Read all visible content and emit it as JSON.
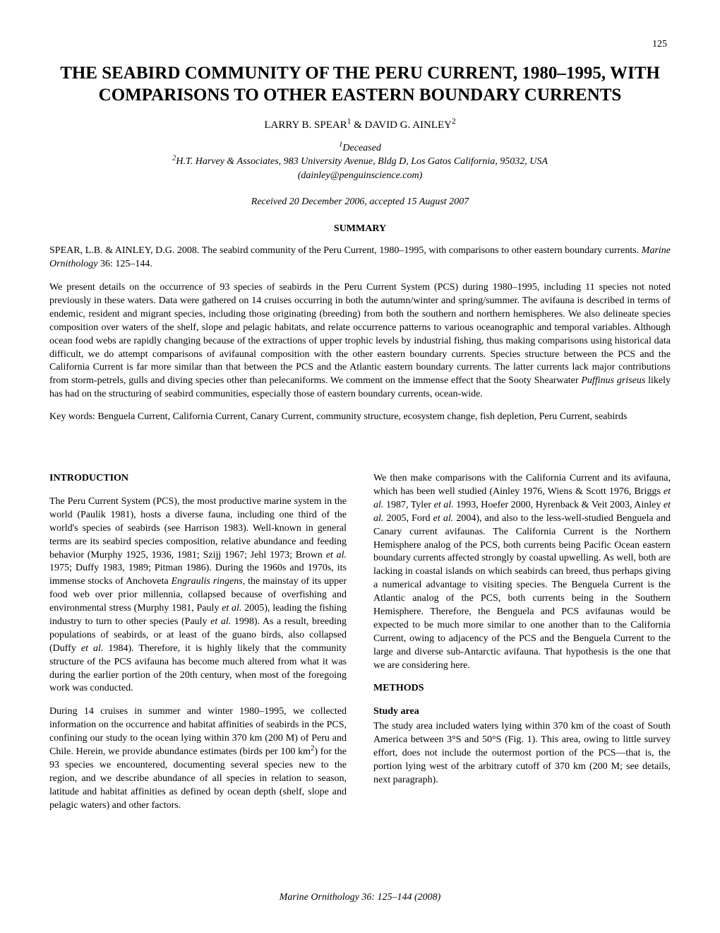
{
  "page_number": "125",
  "title_line1": "THE SEABIRD COMMUNITY OF THE PERU CURRENT, 1980–1995, WITH",
  "title_line2": "COMPARISONS TO OTHER EASTERN BOUNDARY CURRENTS",
  "authors_prefix": "LARRY B. SPEAR",
  "authors_sup1": "1",
  "authors_mid": " & DAVID G. AINLEY",
  "authors_sup2": "2",
  "affil_sup1": "1",
  "affil_line1": "Deceased",
  "affil_sup2": "2",
  "affil_line2": "H.T. Harvey & Associates, 983 University Avenue, Bldg D, Los Gatos California, 95032, USA",
  "affil_line3": "(dainley@penguinscience.com)",
  "received": "Received 20 December 2006, accepted 15 August 2007",
  "summary_heading": "SUMMARY",
  "summary_cite_a": "SPEAR, L.B. & AINLEY, D.G. 2008. The seabird community of the Peru Current, 1980–1995, with comparisons to other eastern boundary currents. ",
  "summary_cite_b": "Marine Ornithology",
  "summary_cite_c": " 36: 125–144.",
  "summary_body_a": "We present details on the occurrence of 93 species of seabirds in the Peru Current System (PCS) during 1980–1995, including 11 species not noted previously in these waters. Data were gathered on 14 cruises occurring in both the autumn/winter and spring/summer. The avifauna is described in terms of endemic, resident and migrant species, including those originating (breeding) from both the southern and northern hemispheres. We also delineate species composition over waters of the shelf, slope and pelagic habitats, and relate occurrence patterns to various oceanographic and temporal variables. Although ocean food webs are rapidly changing because of the extractions of upper trophic levels by industrial fishing, thus making comparisons using historical data difficult, we do attempt comparisons of avifaunal composition with the other eastern boundary currents. Species structure between the PCS and the California Current is far more similar than that between the PCS and the Atlantic eastern boundary currents. The latter currents lack major contributions from storm-petrels, gulls and diving species other than pelecaniforms. We comment on the immense effect that the Sooty Shearwater ",
  "summary_body_b": "Puffinus griseus",
  "summary_body_c": " likely has had on the structuring of seabird communities, especially those of eastern boundary currents, ocean-wide.",
  "keywords": "Key words: Benguela Current, California Current, Canary Current, community structure, ecosystem change, fish depletion, Peru Current, seabirds",
  "intro_heading": "INTRODUCTION",
  "intro_p1_a": "The Peru Current System (PCS), the most productive marine system in the world (Paulik 1981), hosts a diverse fauna, including one third of the world's species of seabirds (see Harrison 1983). Well-known in general terms are its seabird species composition, relative abundance and feeding behavior (Murphy 1925, 1936, 1981; Szijj 1967; Jehl 1973; Brown ",
  "intro_p1_b": "et al.",
  "intro_p1_c": " 1975; Duffy 1983, 1989; Pitman 1986). During the 1960s and 1970s, its immense stocks of Anchoveta ",
  "intro_p1_d": "Engraulis ringens,",
  "intro_p1_e": " the mainstay of its upper food web over prior millennia, collapsed because of overfishing and environmental stress (Murphy 1981, Pauly ",
  "intro_p1_f": "et al.",
  "intro_p1_g": " 2005), leading the fishing industry to turn to other species (Pauly ",
  "intro_p1_h": "et al.",
  "intro_p1_i": " 1998). As a result, breeding populations of seabirds, or at least of the guano birds, also collapsed (Duffy ",
  "intro_p1_j": "et al.",
  "intro_p1_k": " 1984). Therefore, it is highly likely that the community structure of the PCS avifauna has become much altered from what it was during the earlier portion of the 20th century, when most of the foregoing work was conducted.",
  "intro_p2_a": "During 14 cruises in summer and winter 1980–1995, we collected information on the occurrence and habitat affinities of seabirds in the PCS, confining our study to the ocean lying within 370 km (200 M) of Peru and Chile. Herein, we provide abundance estimates (birds per 100 km",
  "intro_p2_sup": "2",
  "intro_p2_b": ") for the 93 species we encountered, documenting several species new to the region, and we describe abundance of all species in relation to season, latitude and habitat affinities as defined by ocean depth (shelf, slope and pelagic waters) and other factors.",
  "col2_p1_a": "We then make comparisons with the California Current and its avifauna, which has been well studied (Ainley 1976, Wiens & Scott 1976, Briggs ",
  "col2_p1_b": "et al.",
  "col2_p1_c": " 1987, Tyler ",
  "col2_p1_d": "et al.",
  "col2_p1_e": " 1993, Hoefer 2000, Hyrenback & Veit 2003, Ainley ",
  "col2_p1_f": "et al.",
  "col2_p1_g": " 2005, Ford ",
  "col2_p1_h": "et al.",
  "col2_p1_i": " 2004), and also to the less-well-studied Benguela and Canary current avifaunas. The California Current is the Northern Hemisphere analog of the PCS, both currents being Pacific Ocean eastern boundary currents affected strongly by coastal upwelling. As well, both are lacking in coastal islands on which seabirds can breed, thus perhaps giving a numerical advantage to visiting species. The Benguela Current is the Atlantic analog of the PCS, both currents being in the Southern Hemisphere. Therefore, the Benguela and PCS avifaunas would be expected to be much more similar to one another than to the California Current, owing to adjacency of the PCS and the Benguela Current to the large and diverse sub-Antarctic avifauna. That hypothesis is the one that we are considering here.",
  "methods_heading": "METHODS",
  "study_heading": "Study area",
  "study_body": "The study area included waters lying within 370 km of the coast of South America between 3°S and 50°S (Fig. 1). This area, owing to little survey effort, does not include the outermost portion of the PCS—that is, the portion lying west of the arbitrary cutoff of 370 km (200 M; see details, next paragraph).",
  "footer_a": "Marine Ornithology",
  "footer_b": " 36: 125–144 (2008)"
}
